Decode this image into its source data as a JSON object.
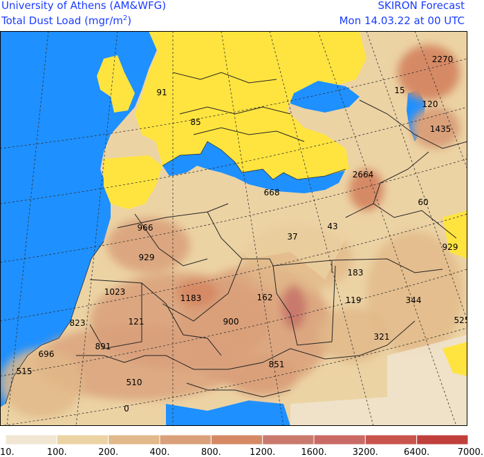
{
  "header": {
    "org": "University of Athens (AM&WFG)",
    "product": "SKIRON Forecast",
    "variable_prefix": "Total Dust Load (mgr/m",
    "variable_sup": "2",
    "variable_suffix": ")",
    "valid_time": "Mon 14.03.22 at 00 UTC"
  },
  "colors": {
    "ocean": "#1e90ff",
    "land_clean": "#ffe43f",
    "grid": "#333333",
    "border": "#222222"
  },
  "dust_labels": [
    {
      "id": "91",
      "text": "91"
    },
    {
      "id": "85",
      "text": "85"
    },
    {
      "id": "2270",
      "text": "2270"
    },
    {
      "id": "15",
      "text": "15"
    },
    {
      "id": "120",
      "text": "120"
    },
    {
      "id": "1435",
      "text": "1435"
    },
    {
      "id": "2664",
      "text": "2664"
    },
    {
      "id": "668",
      "text": "668"
    },
    {
      "id": "60",
      "text": "60"
    },
    {
      "id": "966",
      "text": "966"
    },
    {
      "id": "43",
      "text": "43"
    },
    {
      "id": "37",
      "text": "37"
    },
    {
      "id": "929a",
      "text": "929"
    },
    {
      "id": "929b",
      "text": "929"
    },
    {
      "id": "183",
      "text": "183"
    },
    {
      "id": "1023",
      "text": "1023"
    },
    {
      "id": "1183",
      "text": "1183"
    },
    {
      "id": "162",
      "text": "162"
    },
    {
      "id": "119",
      "text": "119"
    },
    {
      "id": "344",
      "text": "344"
    },
    {
      "id": "823",
      "text": "823"
    },
    {
      "id": "121",
      "text": "121"
    },
    {
      "id": "900",
      "text": "900"
    },
    {
      "id": "525",
      "text": "525"
    },
    {
      "id": "891",
      "text": "891"
    },
    {
      "id": "321",
      "text": "321"
    },
    {
      "id": "696",
      "text": "696"
    },
    {
      "id": "851",
      "text": "851"
    },
    {
      "id": "515",
      "text": "515"
    },
    {
      "id": "510",
      "text": "510"
    },
    {
      "id": "0",
      "text": "0"
    }
  ],
  "legend": {
    "bins": [
      {
        "color": "#f0e6d2"
      },
      {
        "color": "#ecd3a4"
      },
      {
        "color": "#e2b98a"
      },
      {
        "color": "#d9a07a"
      },
      {
        "color": "#d58a65"
      },
      {
        "color": "#c97a6c"
      },
      {
        "color": "#c96a64"
      },
      {
        "color": "#c9544e"
      },
      {
        "color": "#c1403c"
      }
    ],
    "ticks": [
      "10.",
      "100.",
      "200.",
      "400.",
      "800.",
      "1200.",
      "1600.",
      "3200.",
      "6400.",
      "7000."
    ]
  }
}
